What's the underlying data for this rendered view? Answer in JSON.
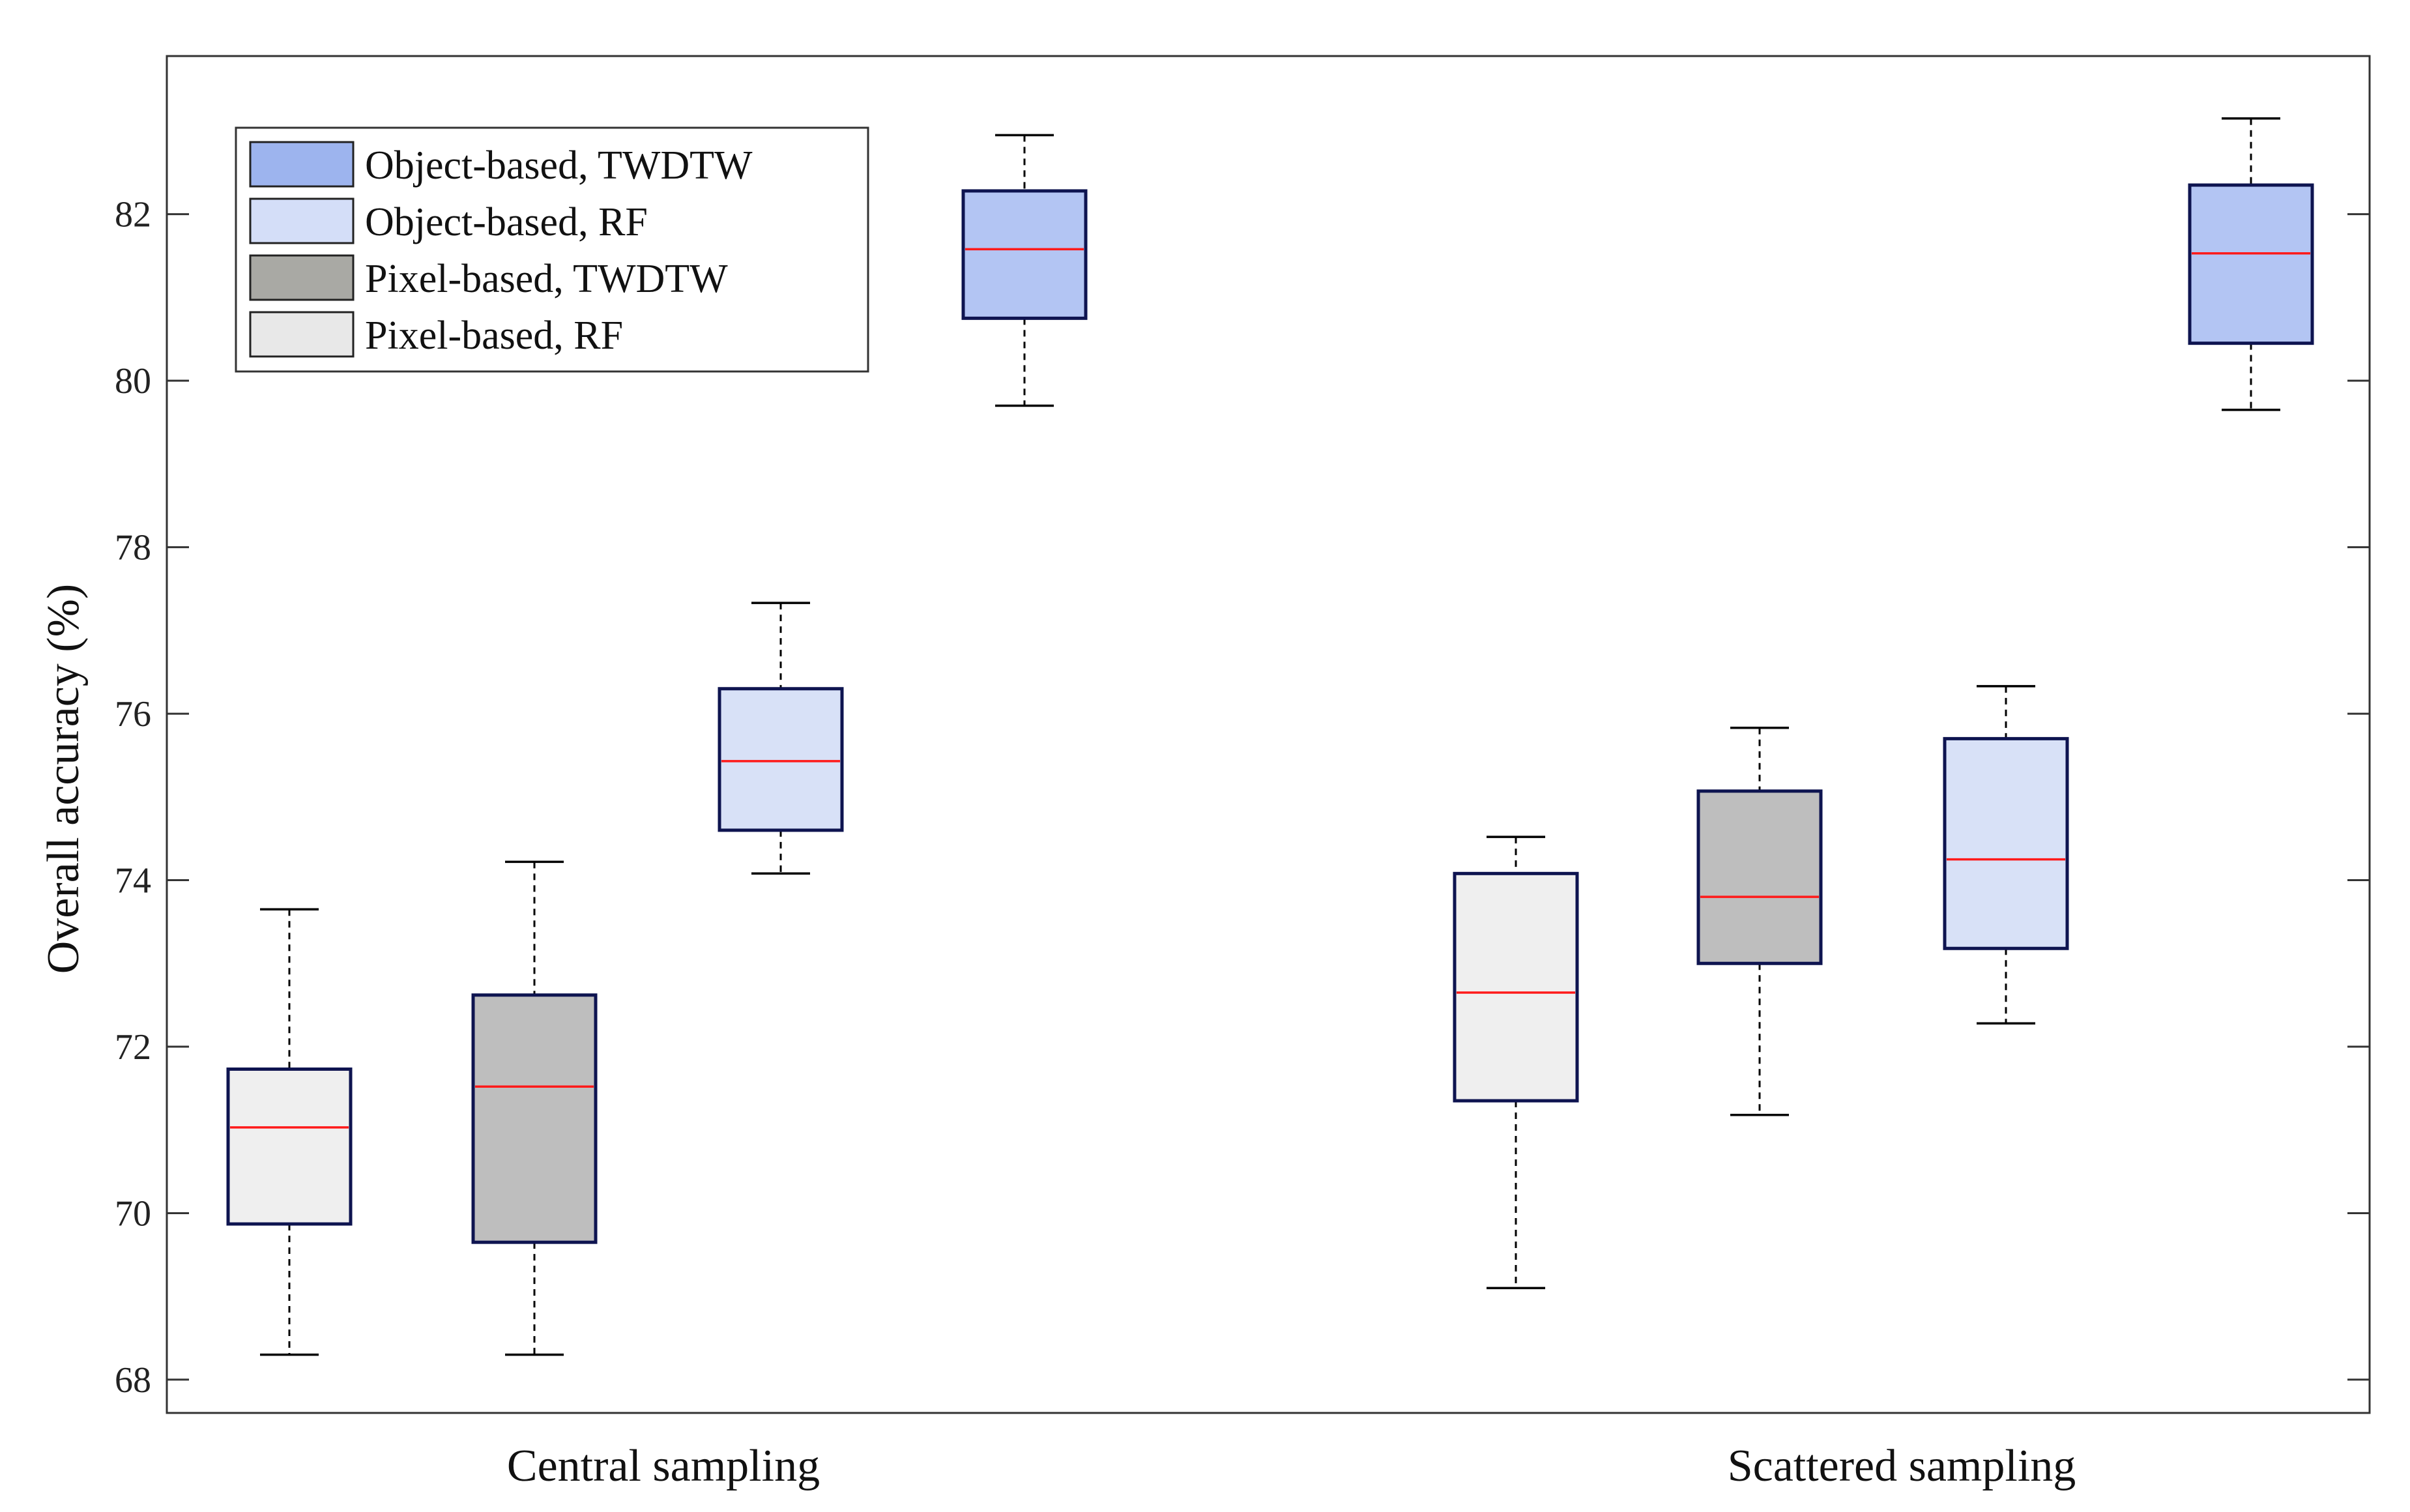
{
  "chart_data": {
    "type": "box",
    "title": "",
    "xlabel": "",
    "ylabel": "Overall accuracy (%)",
    "ylim": [
      67.6,
      83.9
    ],
    "yticks": [
      68,
      70,
      72,
      74,
      76,
      78,
      80,
      82
    ],
    "grid": false,
    "legend_position": "top-left",
    "categories": [
      "Central sampling",
      "Scattered sampling"
    ],
    "series": [
      {
        "name": "Pixel-based, RF",
        "color": "#efefef",
        "boxes": [
          {
            "min": 68.3,
            "q1": 69.87,
            "median": 71.03,
            "q3": 71.73,
            "max": 73.65
          },
          {
            "min": 69.1,
            "q1": 71.35,
            "median": 72.65,
            "q3": 74.08,
            "max": 74.52
          }
        ]
      },
      {
        "name": "Pixel-based, TWDTW",
        "color": "#bebebe",
        "boxes": [
          {
            "min": 68.3,
            "q1": 69.65,
            "median": 71.52,
            "q3": 72.62,
            "max": 74.22
          },
          {
            "min": 71.18,
            "q1": 73.0,
            "median": 73.8,
            "q3": 75.07,
            "max": 75.83
          }
        ]
      },
      {
        "name": "Object-based, RF",
        "color": "#d8e1f7",
        "boxes": [
          {
            "min": 74.08,
            "q1": 74.6,
            "median": 75.43,
            "q3": 76.3,
            "max": 77.33
          },
          {
            "min": 72.28,
            "q1": 73.18,
            "median": 74.25,
            "q3": 75.7,
            "max": 76.33
          }
        ]
      },
      {
        "name": "Object-based, TWDTW",
        "color": "#b3c5f3",
        "boxes": [
          {
            "min": 79.7,
            "q1": 80.75,
            "median": 81.58,
            "q3": 82.28,
            "max": 82.95
          },
          {
            "min": 79.65,
            "q1": 80.45,
            "median": 81.53,
            "q3": 82.35,
            "max": 83.15
          }
        ]
      }
    ],
    "legend_order": [
      "Object-based, TWDTW",
      "Object-based, RF",
      "Pixel-based, TWDTW",
      "Pixel-based, RF"
    ],
    "legend_colors": [
      "#9db4ee",
      "#d4def8",
      "#a9a9a4",
      "#e8e8e8"
    ],
    "box_edge_color": "#0e1450",
    "median_color": "#ff1a1a"
  }
}
